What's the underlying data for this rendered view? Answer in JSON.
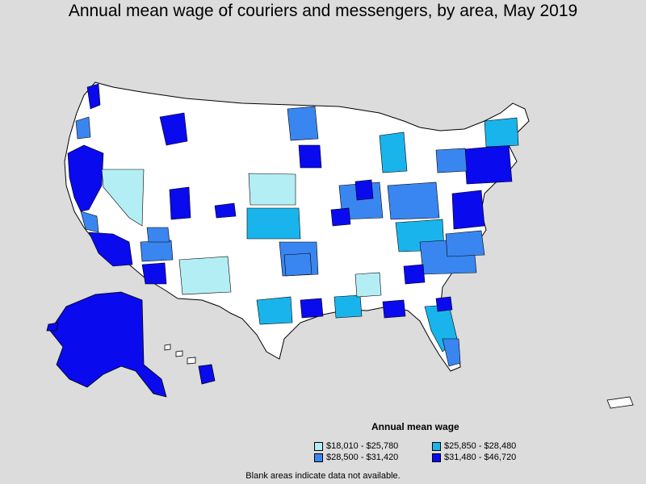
{
  "title": "Annual mean wage of couriers and messengers, by area, May 2019",
  "legend": {
    "title": "Annual mean wage",
    "items": [
      {
        "label": "$18,010 - $25,780",
        "color": "#b3eef5"
      },
      {
        "label": "$25,850 - $28,480",
        "color": "#1ab4ec"
      },
      {
        "label": "$28,500 - $31,420",
        "color": "#3a86f0"
      },
      {
        "label": "$31,480 - $46,720",
        "color": "#0a0aee"
      }
    ]
  },
  "footnote": "Blank areas indicate data not available.",
  "colors": {
    "background": "#dcdcdc",
    "blank": "#ffffff",
    "outline": "#000000"
  }
}
